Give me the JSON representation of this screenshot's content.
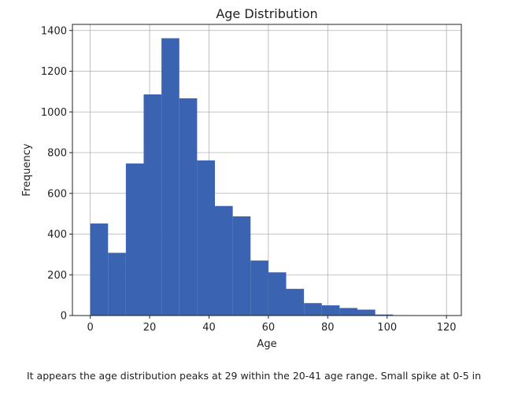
{
  "chart_data": {
    "type": "bar",
    "title": "Age Distribution",
    "xlabel": "Age",
    "ylabel": "Frequency",
    "xlim": [
      -6,
      125
    ],
    "ylim": [
      0,
      1430
    ],
    "xticks": [
      0,
      20,
      40,
      60,
      80,
      100,
      120
    ],
    "yticks": [
      0,
      200,
      400,
      600,
      800,
      1000,
      1200,
      1400
    ],
    "grid": true,
    "bar_color": "#3a63b1",
    "bins": [
      {
        "x0": 0,
        "x1": 6,
        "value": 452
      },
      {
        "x0": 6,
        "x1": 12,
        "value": 308
      },
      {
        "x0": 12,
        "x1": 18,
        "value": 747
      },
      {
        "x0": 18,
        "x1": 24,
        "value": 1086
      },
      {
        "x0": 24,
        "x1": 30,
        "value": 1362
      },
      {
        "x0": 30,
        "x1": 36,
        "value": 1067
      },
      {
        "x0": 36,
        "x1": 42,
        "value": 762
      },
      {
        "x0": 42,
        "x1": 48,
        "value": 538
      },
      {
        "x0": 48,
        "x1": 54,
        "value": 487
      },
      {
        "x0": 54,
        "x1": 60,
        "value": 270
      },
      {
        "x0": 60,
        "x1": 66,
        "value": 212
      },
      {
        "x0": 66,
        "x1": 72,
        "value": 131
      },
      {
        "x0": 72,
        "x1": 78,
        "value": 61
      },
      {
        "x0": 78,
        "x1": 84,
        "value": 50
      },
      {
        "x0": 84,
        "x1": 90,
        "value": 37
      },
      {
        "x0": 90,
        "x1": 96,
        "value": 29
      },
      {
        "x0": 96,
        "x1": 102,
        "value": 5
      },
      {
        "x0": 102,
        "x1": 108,
        "value": 2
      },
      {
        "x0": 108,
        "x1": 114,
        "value": 1
      },
      {
        "x0": 114,
        "x1": 120,
        "value": 1
      }
    ]
  },
  "caption": "It appears the age distribution peaks at 29 within the 20-41 age range. Small spike at 0-5 in"
}
